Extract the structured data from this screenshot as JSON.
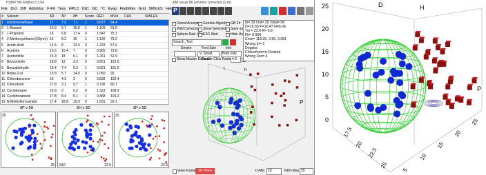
{
  "window": {
    "title": "HSPiP 5th Edition 5.3.04",
    "status": "488 visual 88 solvents corrected (1-th)",
    "menu": [
      "File",
      "Dict",
      "Diff",
      "Adh/Visc",
      "F-Fit",
      "Tess",
      "HPLC",
      "IGC",
      "GC",
      "°C",
      "Evap",
      "FindMols",
      "Grid",
      "SMILES",
      "Help"
    ]
  },
  "table": {
    "columns": [
      "#",
      "Solvent",
      "δD",
      "δP",
      "δH",
      "Score",
      "RED",
      "MVol",
      "CAS",
      "SMILES"
    ],
    "rows": [
      [
        "1",
        "Dichloromethane",
        "17",
        "7.3",
        "7.1",
        "1",
        "0.677",
        "64.4"
      ],
      [
        "2",
        "1-Butanol",
        "15.9",
        "5.7",
        "15.8",
        "1",
        "1.109",
        "91.5"
      ],
      [
        "3",
        "1-Propanol",
        "16",
        "6.8",
        "17.4",
        "0",
        "1.547",
        "75.1"
      ],
      [
        "4",
        "2-Methoxyethanol (Glyme)",
        "16",
        "8.2",
        "15",
        "1",
        "1.126",
        "79.2"
      ],
      [
        "5",
        "Acetic Acid",
        "14.5",
        "8",
        "13.5",
        "0",
        "1.223",
        "57.6"
      ],
      [
        "6",
        "Acetone",
        "15.5",
        "10.4",
        "7",
        "0",
        "0.905",
        "73.8"
      ],
      [
        "7",
        "Acetonitrile",
        "15.3",
        "18",
        "6.1",
        "0",
        "1.261",
        "52.9"
      ],
      [
        "8",
        "Benzonitrile",
        "18.8",
        "12",
        "3.3",
        "0",
        "0.851",
        "102.6"
      ],
      [
        "9",
        "Benzaldehyde",
        "19.4",
        "7.4",
        "5.3",
        "1",
        "0.621",
        "101.5"
      ],
      [
        "10",
        "Butan-2-ol",
        "15.8",
        "5.7",
        "14.5",
        "0",
        "1.050",
        "92"
      ],
      [
        "11",
        "Chlorobenzene",
        "19",
        "4.3",
        "2",
        "0",
        "0.832",
        "102.4"
      ],
      [
        "12",
        "Chloroform",
        "17.8",
        "3.1",
        "5.7",
        "1",
        "0.795",
        "80.7"
      ],
      [
        "13",
        "Cyclohexane",
        "16.8",
        "0",
        "0.2",
        "0",
        "1.323",
        "108.9"
      ],
      [
        "14",
        "Cyclohexanone",
        "17.8",
        "8.4",
        "5.1",
        "1",
        "0.468",
        "104.2"
      ],
      [
        "15",
        "N-Methylformamide",
        "17.4",
        "18.8",
        "15.9",
        "0",
        "1.591",
        "59.1"
      ]
    ]
  },
  "controls": {
    "button": "P",
    "checkboxes": [
      "Donor/Acceptor",
      "Genetic Algorithm",
      "GB Fit",
      "Wild Correction",
      "Show Selected",
      "Save as fed",
      "Sphere Rad. Chk",
      "ESC Alert",
      "Hide Unused"
    ],
    "search": "Search_Text",
    "smoke_label": "Smoke",
    "font_label": "Font Size",
    "font_value": "V. Small",
    "info_label": "Info",
    "info_value": "Both only",
    "master": "Show Master Dataset",
    "radius_label": "Double Click Radius",
    "radius_value": "4.0",
    "limit": "Limit"
  },
  "results": [
    "In= 33 Out= 25 Total= 58",
    "D=19.55 P=10.47 H=6.06",
    "Tot = 23.0 R= 9.8",
    "Fit= 0.960",
    "Core= 118.25, 0.95, 0.681",
    "Wrong In= 2",
    "Dogdos",
    "Chloroform=n-Octanol",
    "Wrong Out= 4"
  ],
  "plots2d": [
    {
      "title": "δP v δH",
      "top_left": "25",
      "bottom_right": "25"
    },
    {
      "title": "δH v δD",
      "bottom_left": "0/10",
      "bottom_right": "22.5"
    },
    {
      "title": "δP v δD",
      "top_left": "25",
      "bottom_right": "22.5"
    }
  ],
  "bottom": {
    "view_frame": "View Frame",
    "plane": "3D Plane",
    "dmin_label": "D-Min",
    "dmin_value": "10",
    "fhmax_label": "F&H-Max",
    "fhmax_value": "25"
  },
  "plot3d_small": {
    "labels": [
      "t",
      "h",
      "P"
    ]
  },
  "plot3d_large": {
    "axis_d": "D",
    "axis_h": "H",
    "axis_p": "P",
    "left_ticks": [
      "25",
      "20",
      "15",
      "10",
      "5",
      "0"
    ],
    "front_ticks": [
      "17.5",
      "20",
      "22.5",
      "25"
    ],
    "right_ticks": [
      "5",
      "10",
      "15",
      "20",
      "25"
    ]
  }
}
